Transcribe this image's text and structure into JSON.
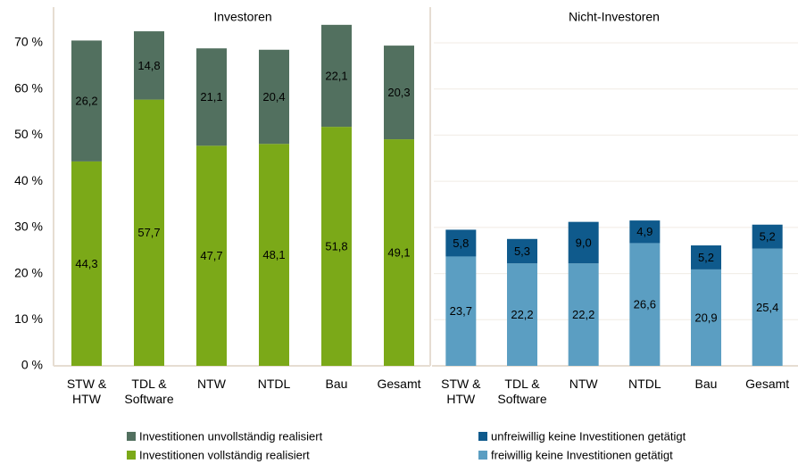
{
  "chart_data": [
    {
      "type": "stacked-bar",
      "title": "Investoren",
      "categories": [
        "STW &\nHTW",
        "TDL &\nSoftware",
        "NTW",
        "NTDL",
        "Bau",
        "Gesamt"
      ],
      "series": [
        {
          "name": "Investitionen vollständig realisiert",
          "color": "#7ba918",
          "values": [
            44.3,
            57.7,
            47.7,
            48.1,
            51.8,
            49.1
          ],
          "value_labels": [
            "44,3",
            "57,7",
            "47,7",
            "48,1",
            "51,8",
            "49,1"
          ]
        },
        {
          "name": "Investitionen unvollständig realisiert",
          "color": "#52705f",
          "values": [
            26.2,
            14.8,
            21.1,
            20.4,
            22.1,
            20.3
          ],
          "value_labels": [
            "26,2",
            "14,8",
            "21,1",
            "20,4",
            "22,1",
            "20,3"
          ]
        }
      ],
      "ylim": [
        0,
        70
      ],
      "yticks": [
        {
          "value": 0,
          "label": "0 %"
        },
        {
          "value": 10,
          "label": "10 %"
        },
        {
          "value": 20,
          "label": "20 %"
        },
        {
          "value": 30,
          "label": "30 %"
        },
        {
          "value": 40,
          "label": "40 %"
        },
        {
          "value": 50,
          "label": "50 %"
        },
        {
          "value": 60,
          "label": "60 %"
        },
        {
          "value": 70,
          "label": "70 %"
        }
      ],
      "grid": false
    },
    {
      "type": "stacked-bar",
      "title": "Nicht-Investoren",
      "categories": [
        "STW &\nHTW",
        "TDL &\nSoftware",
        "NTW",
        "NTDL",
        "Bau",
        "Gesamt"
      ],
      "series": [
        {
          "name": "freiwillig keine Investitionen getätigt",
          "color": "#5b9ec2",
          "values": [
            23.7,
            22.2,
            22.2,
            26.6,
            20.9,
            25.4
          ],
          "value_labels": [
            "23,7",
            "22,2",
            "22,2",
            "26,6",
            "20,9",
            "25,4"
          ]
        },
        {
          "name": "unfreiwillig keine Investitionen getätigt",
          "color": "#0f5a8c",
          "values": [
            5.8,
            5.3,
            9.0,
            4.9,
            5.2,
            5.2
          ],
          "value_labels": [
            "5,8",
            "5,3",
            "9,0",
            "4,9",
            "5,2",
            "5,2"
          ]
        }
      ],
      "ylim": [
        0,
        70
      ],
      "grid": true
    }
  ]
}
